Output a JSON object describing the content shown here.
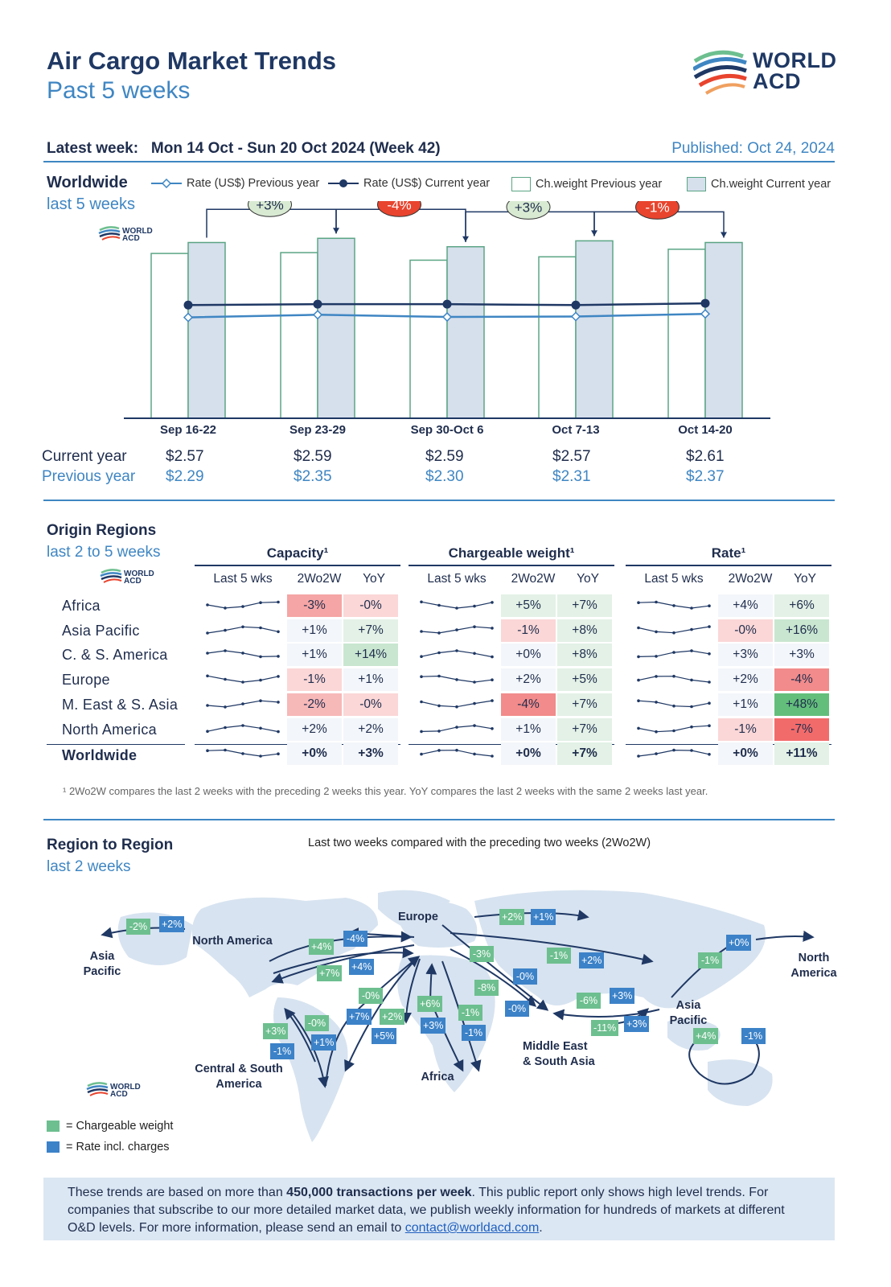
{
  "header": {
    "title": "Air Cargo Market Trends",
    "subtitle": "Past 5 weeks",
    "logo_line1": "WORLD",
    "logo_line2": "ACD",
    "latest_week_label": "Latest week:",
    "latest_week_value": "Mon 14 Oct - Sun 20 Oct 2024 (Week 42)",
    "published": "Published: Oct 24, 2024"
  },
  "worldwide": {
    "title": "Worldwide",
    "subtitle": "last 5 weeks",
    "legend": [
      "Rate (US$) Previous year",
      "Rate (US$) Current year",
      "Ch.weight Previous year",
      "Ch.weight Current year"
    ],
    "row_current_label": "Current year",
    "row_previous_label": "Previous year"
  },
  "chart_data": {
    "type": "bar",
    "categories": [
      "Sep 16-22",
      "Sep 23-29",
      "Sep 30-Oct 6",
      "Oct 7-13",
      "Oct 14-20"
    ],
    "series": [
      {
        "name": "Ch.weight Previous year",
        "kind": "bar",
        "values": [
          196,
          197,
          188,
          192,
          201
        ]
      },
      {
        "name": "Ch.weight Current year",
        "kind": "bar",
        "values": [
          209,
          214,
          204,
          211,
          209
        ]
      },
      {
        "name": "Rate (US$) Current year",
        "kind": "line",
        "values": [
          2.57,
          2.59,
          2.59,
          2.57,
          2.61
        ]
      },
      {
        "name": "Rate (US$) Previous year",
        "kind": "line",
        "values": [
          2.29,
          2.35,
          2.3,
          2.31,
          2.37
        ]
      }
    ],
    "current_year_labels": [
      "$2.57",
      "$2.59",
      "$2.59",
      "$2.57",
      "$2.61"
    ],
    "previous_year_labels": [
      "$2.29",
      "$2.35",
      "$2.30",
      "$2.31",
      "$2.37"
    ],
    "week_changes": [
      {
        "label": "+3%",
        "color": "#d9ead3"
      },
      {
        "label": "-4%",
        "color": "#e8442e"
      },
      {
        "label": "+3%",
        "color": "#d9ead3"
      },
      {
        "label": "-1%",
        "color": "#e8442e"
      }
    ],
    "colors": {
      "bar_prev": "#ffffff",
      "bar_curr": "#d6dfec",
      "bar_border": "#5ba585",
      "line_curr": "#1f3864",
      "line_prev": "#3f86c3"
    }
  },
  "origin": {
    "title": "Origin Regions",
    "subtitle": "last 2 to 5 weeks",
    "groups": [
      "Capacity¹",
      "Chargeable weight¹",
      "Rate¹"
    ],
    "subheads": [
      "Last 5 wks",
      "2Wo2W",
      "YoY"
    ],
    "rows": [
      {
        "name": "Africa",
        "cap": [
          "-3%",
          "-0%"
        ],
        "cw": [
          "+5%",
          "+7%"
        ],
        "rate": [
          "+4%",
          "+6%"
        ]
      },
      {
        "name": "Asia Pacific",
        "cap": [
          "+1%",
          "+7%"
        ],
        "cw": [
          "-1%",
          "+8%"
        ],
        "rate": [
          "-0%",
          "+16%"
        ]
      },
      {
        "name": "C. & S. America",
        "cap": [
          "+1%",
          "+14%"
        ],
        "cw": [
          "+0%",
          "+8%"
        ],
        "rate": [
          "+3%",
          "+3%"
        ]
      },
      {
        "name": "Europe",
        "cap": [
          "-1%",
          "+1%"
        ],
        "cw": [
          "+2%",
          "+5%"
        ],
        "rate": [
          "+2%",
          "-4%"
        ]
      },
      {
        "name": "M. East & S. Asia",
        "cap": [
          "-2%",
          "-0%"
        ],
        "cw": [
          "-4%",
          "+7%"
        ],
        "rate": [
          "+1%",
          "+48%"
        ]
      },
      {
        "name": "North America",
        "cap": [
          "+2%",
          "+2%"
        ],
        "cw": [
          "+1%",
          "+7%"
        ],
        "rate": [
          "-1%",
          "-7%"
        ]
      },
      {
        "name": "Worldwide",
        "cap": [
          "+0%",
          "+3%"
        ],
        "cw": [
          "+0%",
          "+7%"
        ],
        "rate": [
          "+0%",
          "+11%"
        ]
      }
    ],
    "footnote": "¹ 2Wo2W compares the last 2 weeks with the preceding 2 weeks this year. YoY compares the last 2 weeks with the same 2 weeks last year."
  },
  "region": {
    "title": "Region to Region",
    "subtitle": "last 2 weeks",
    "note": "Last two weeks compared with the preceding two weeks (2Wo2W)",
    "labels": {
      "asia_pacific_w": "Asia\nPacific",
      "north_america": "North America",
      "europe": "Europe",
      "north_america_e": "North\nAmerica",
      "asia_pacific": "Asia Pacific",
      "central_south": "Central & South\nAmerica",
      "africa": "Africa",
      "mesa": "Middle East\n& South Asia"
    },
    "legend_cw": "= Chargeable weight",
    "legend_rate": "= Rate incl. charges"
  },
  "footer": {
    "text_a": "These trends are based on more than ",
    "text_bold": "450,000 transactions per week",
    "text_b": ". This public report only shows high level trends. For companies that subscribe to our more detailed market data, we publish weekly information for hundreds of markets at different O&D levels. For more information, please send an email to ",
    "email": "contact@worldacd.com",
    "text_c": "."
  }
}
